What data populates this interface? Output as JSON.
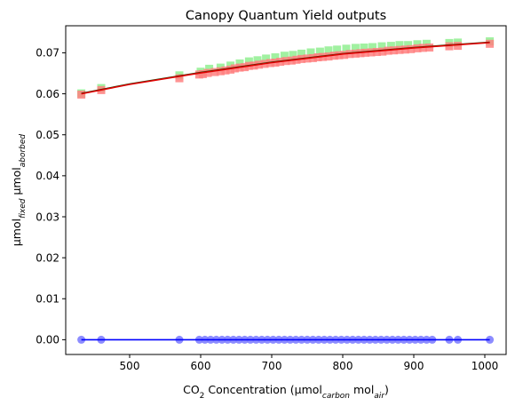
{
  "chart_data": {
    "type": "scatter",
    "title": "Canopy Quantum Yield outputs",
    "xlabel": {
      "parts": [
        {
          "t": "CO",
          "s": "n"
        },
        {
          "t": "2",
          "s": "sub"
        },
        {
          "t": " Concentration (µmol",
          "s": "n"
        },
        {
          "t": "carbon",
          "s": "subi"
        },
        {
          "t": " mol",
          "s": "n"
        },
        {
          "t": "air",
          "s": "subi"
        },
        {
          "t": ")",
          "s": "n"
        }
      ]
    },
    "ylabel": {
      "parts": [
        {
          "t": "µmol",
          "s": "n"
        },
        {
          "t": "fixed",
          "s": "subi"
        },
        {
          "t": " µmol",
          "s": "n"
        },
        {
          "t": "aborbed",
          "s": "subi"
        }
      ]
    },
    "xlim": [
      410,
      1030
    ],
    "ylim": [
      -0.0036,
      0.0766
    ],
    "xticks": [
      500,
      600,
      700,
      800,
      900,
      1000
    ],
    "xtick_labels": [
      "500",
      "600",
      "700",
      "800",
      "900",
      "1000"
    ],
    "yticks": [
      0.0,
      0.01,
      0.02,
      0.03,
      0.04,
      0.05,
      0.06,
      0.07
    ],
    "ytick_labels": [
      "0.00",
      "0.01",
      "0.02",
      "0.03",
      "0.04",
      "0.05",
      "0.06",
      "0.07"
    ],
    "grid": false,
    "series": [
      {
        "marker": "square",
        "color": "#90ee90",
        "x": [
          432,
          460,
          570,
          600,
          612,
          628,
          642,
          655,
          668,
          680,
          692,
          705,
          718,
          730,
          742,
          755,
          768,
          780,
          792,
          805,
          818,
          830,
          842,
          855,
          868,
          880,
          892,
          905,
          918,
          950,
          962,
          1007
        ],
        "y": [
          0.0601,
          0.0614,
          0.0645,
          0.0654,
          0.0661,
          0.0664,
          0.0669,
          0.0674,
          0.0679,
          0.0682,
          0.0686,
          0.0689,
          0.0693,
          0.0695,
          0.0698,
          0.0701,
          0.0703,
          0.0706,
          0.0708,
          0.071,
          0.0712,
          0.0713,
          0.0714,
          0.0716,
          0.0717,
          0.0719,
          0.0719,
          0.0721,
          0.0722,
          0.0724,
          0.0725,
          0.0728
        ]
      },
      {
        "marker": "square",
        "color": "#ff8080",
        "x": [
          432,
          460,
          570,
          598,
          603,
          610,
          620,
          628,
          635,
          642,
          648,
          655,
          662,
          668,
          675,
          682,
          690,
          698,
          705,
          712,
          720,
          728,
          735,
          742,
          750,
          758,
          765,
          772,
          780,
          788,
          795,
          802,
          810,
          818,
          825,
          832,
          840,
          848,
          856,
          864,
          872,
          880,
          888,
          896,
          905,
          913,
          922,
          950,
          962,
          1007
        ],
        "y": [
          0.0598,
          0.0609,
          0.0638,
          0.0647,
          0.0648,
          0.0651,
          0.0653,
          0.0655,
          0.0657,
          0.0659,
          0.0662,
          0.0664,
          0.0665,
          0.0668,
          0.0669,
          0.0671,
          0.0673,
          0.0675,
          0.0676,
          0.0678,
          0.068,
          0.0681,
          0.0683,
          0.0685,
          0.0686,
          0.0687,
          0.0689,
          0.069,
          0.0691,
          0.0693,
          0.0694,
          0.0695,
          0.0697,
          0.0698,
          0.0699,
          0.07,
          0.0701,
          0.0702,
          0.0703,
          0.0705,
          0.0706,
          0.0707,
          0.0708,
          0.0709,
          0.0711,
          0.0712,
          0.0713,
          0.0716,
          0.0717,
          0.0722
        ]
      },
      {
        "marker": "line",
        "color": "#1f3f00",
        "x": [
          432,
          500,
          600,
          700,
          800,
          900,
          1007
        ],
        "y": [
          0.0601,
          0.0624,
          0.0652,
          0.0677,
          0.0698,
          0.0713,
          0.0726
        ]
      },
      {
        "marker": "line",
        "color": "#e00000",
        "x": [
          432,
          500,
          600,
          700,
          800,
          900,
          1007
        ],
        "y": [
          0.06,
          0.0623,
          0.0651,
          0.0676,
          0.0697,
          0.0712,
          0.0725
        ]
      },
      {
        "marker": "circle",
        "color": "#8080ff",
        "x": [
          432,
          460,
          570,
          598,
          606,
          614,
          622,
          630,
          638,
          646,
          654,
          662,
          670,
          678,
          686,
          694,
          702,
          710,
          718,
          726,
          734,
          742,
          750,
          758,
          766,
          774,
          782,
          790,
          798,
          806,
          814,
          822,
          830,
          838,
          846,
          854,
          862,
          870,
          878,
          886,
          894,
          902,
          910,
          918,
          926,
          950,
          962,
          1007
        ],
        "y": [
          0,
          0,
          0,
          0,
          0,
          0,
          0,
          0,
          0,
          0,
          0,
          0,
          0,
          0,
          0,
          0,
          0,
          0,
          0,
          0,
          0,
          0,
          0,
          0,
          0,
          0,
          0,
          0,
          0,
          0,
          0,
          0,
          0,
          0,
          0,
          0,
          0,
          0,
          0,
          0,
          0,
          0,
          0,
          0,
          0,
          0,
          0,
          0
        ]
      },
      {
        "marker": "line",
        "color": "#0000ff",
        "x": [
          432,
          1007
        ],
        "y": [
          0,
          0
        ]
      }
    ]
  }
}
